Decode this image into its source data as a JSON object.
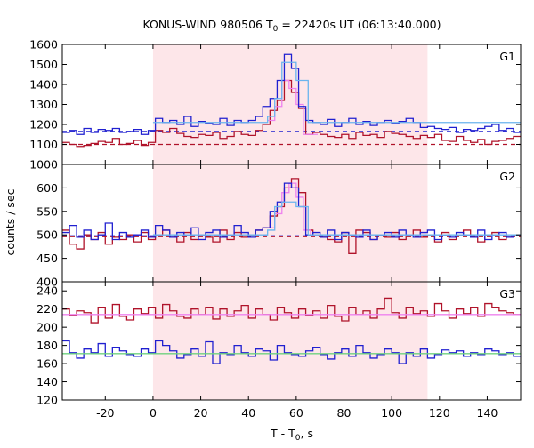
{
  "title_main": "KONUS-WIND 980506 T",
  "title_sub": "0",
  "title_rest": " = 22420s UT (06:13:40.000)",
  "ylabel": "counts / sec",
  "xlabel_main": "T - T",
  "xlabel_sub": "0",
  "xlabel_rest": ", s",
  "colors": {
    "dark_red": "#b0132a",
    "pink": "#ee82ee",
    "blue": "#2020d0",
    "light_blue": "#6ab4ee",
    "background_band": "#fde6e9",
    "green_fit": "#6fd27f"
  },
  "chart_data": [
    {
      "type": "line",
      "panel_label": "G1",
      "xlim": [
        -38,
        154
      ],
      "ylim": [
        1000,
        1600
      ],
      "grid": false,
      "x_ticks": [
        -20,
        0,
        20,
        40,
        60,
        80,
        100,
        120,
        140
      ],
      "y_ticks": [
        1000,
        1100,
        1200,
        1300,
        1400,
        1500,
        1600
      ],
      "highlight_interval": [
        0,
        115
      ],
      "series": [
        {
          "color": "dark_red",
          "step": true,
          "x": [
            -38,
            -35,
            -32,
            -29,
            -26,
            -23,
            -20,
            -17,
            -14,
            -11,
            -8,
            -5,
            -2,
            1,
            4,
            7,
            10,
            13,
            16,
            19,
            22,
            25,
            28,
            31,
            34,
            37,
            40,
            43,
            46,
            49,
            52,
            55,
            58,
            61,
            64,
            67,
            70,
            73,
            76,
            79,
            82,
            85,
            88,
            91,
            94,
            97,
            100,
            103,
            106,
            109,
            112,
            115,
            118,
            121,
            124,
            127,
            130,
            133,
            136,
            139,
            142,
            145,
            148,
            151
          ],
          "y": [
            1110,
            1100,
            1090,
            1095,
            1105,
            1115,
            1110,
            1130,
            1100,
            1105,
            1120,
            1095,
            1110,
            1170,
            1160,
            1180,
            1155,
            1140,
            1135,
            1150,
            1145,
            1160,
            1130,
            1140,
            1165,
            1150,
            1145,
            1170,
            1200,
            1270,
            1320,
            1420,
            1360,
            1280,
            1150,
            1160,
            1150,
            1140,
            1135,
            1150,
            1130,
            1160,
            1145,
            1150,
            1135,
            1165,
            1155,
            1150,
            1140,
            1130,
            1145,
            1135,
            1150,
            1120,
            1115,
            1140,
            1120,
            1110,
            1125,
            1100,
            1115,
            1120,
            1130,
            1140
          ]
        },
        {
          "color": "pink",
          "step": true,
          "x": [
            48,
            51,
            54,
            57,
            60,
            63,
            66
          ],
          "y": [
            1220,
            1290,
            1420,
            1380,
            1300,
            1150,
            1150
          ]
        },
        {
          "color": "blue",
          "step": true,
          "x": [
            -38,
            -35,
            -32,
            -29,
            -26,
            -23,
            -20,
            -17,
            -14,
            -11,
            -8,
            -5,
            -2,
            1,
            4,
            7,
            10,
            13,
            16,
            19,
            22,
            25,
            28,
            31,
            34,
            37,
            40,
            43,
            46,
            49,
            52,
            55,
            58,
            61,
            64,
            67,
            70,
            73,
            76,
            79,
            82,
            85,
            88,
            91,
            94,
            97,
            100,
            103,
            106,
            109,
            112,
            115,
            118,
            121,
            124,
            127,
            130,
            133,
            136,
            139,
            142,
            145,
            148,
            151
          ],
          "y": [
            1160,
            1170,
            1150,
            1180,
            1160,
            1175,
            1170,
            1180,
            1160,
            1165,
            1175,
            1150,
            1170,
            1230,
            1210,
            1220,
            1200,
            1240,
            1190,
            1215,
            1205,
            1200,
            1230,
            1195,
            1220,
            1210,
            1220,
            1240,
            1290,
            1330,
            1420,
            1550,
            1480,
            1290,
            1220,
            1210,
            1200,
            1225,
            1190,
            1210,
            1230,
            1200,
            1215,
            1195,
            1210,
            1220,
            1205,
            1215,
            1230,
            1210,
            1185,
            1190,
            1180,
            1175,
            1185,
            1160,
            1175,
            1170,
            1180,
            1190,
            1200,
            1170,
            1180,
            1160
          ]
        },
        {
          "color": "light_blue",
          "step": true,
          "x": [
            0,
            48,
            51,
            54,
            60,
            65,
            115
          ],
          "y": [
            1210,
            1240,
            1330,
            1510,
            1420,
            1210,
            1210
          ]
        }
      ],
      "reference_lines": [
        {
          "color": "blue",
          "y": 1165,
          "style": "dashed"
        },
        {
          "color": "dark_red",
          "y": 1100,
          "style": "dashed"
        }
      ]
    },
    {
      "type": "line",
      "panel_label": "G2",
      "xlim": [
        -38,
        154
      ],
      "ylim": [
        400,
        650
      ],
      "grid": false,
      "x_ticks": [
        -20,
        0,
        20,
        40,
        60,
        80,
        100,
        120,
        140
      ],
      "y_ticks": [
        400,
        450,
        500,
        550,
        600
      ],
      "highlight_interval": [
        0,
        115
      ],
      "series": [
        {
          "color": "dark_red",
          "step": true,
          "x": [
            -38,
            -35,
            -32,
            -29,
            -26,
            -23,
            -20,
            -17,
            -14,
            -11,
            -8,
            -5,
            -2,
            1,
            4,
            7,
            10,
            13,
            16,
            19,
            22,
            25,
            28,
            31,
            34,
            37,
            40,
            43,
            46,
            49,
            52,
            55,
            58,
            61,
            64,
            67,
            70,
            73,
            76,
            79,
            82,
            85,
            88,
            91,
            94,
            97,
            100,
            103,
            106,
            109,
            112,
            115,
            118,
            121,
            124,
            127,
            130,
            133,
            136,
            139,
            142,
            145,
            148,
            151
          ],
          "y": [
            510,
            480,
            470,
            500,
            490,
            505,
            480,
            495,
            490,
            500,
            485,
            505,
            490,
            500,
            510,
            495,
            485,
            505,
            490,
            500,
            495,
            485,
            510,
            490,
            505,
            495,
            500,
            510,
            515,
            540,
            560,
            600,
            620,
            590,
            510,
            500,
            495,
            490,
            485,
            505,
            460,
            510,
            505,
            490,
            500,
            495,
            505,
            490,
            500,
            510,
            495,
            500,
            485,
            505,
            490,
            500,
            510,
            495,
            485,
            500,
            505,
            490,
            495,
            500
          ]
        },
        {
          "color": "pink",
          "step": true,
          "x": [
            48,
            51,
            54,
            57,
            60,
            63,
            66
          ],
          "y": [
            515,
            545,
            590,
            610,
            580,
            510,
            500
          ]
        },
        {
          "color": "blue",
          "step": true,
          "x": [
            -38,
            -35,
            -32,
            -29,
            -26,
            -23,
            -20,
            -17,
            -14,
            -11,
            -8,
            -5,
            -2,
            1,
            4,
            7,
            10,
            13,
            16,
            19,
            22,
            25,
            28,
            31,
            34,
            37,
            40,
            43,
            46,
            49,
            52,
            55,
            58,
            61,
            64,
            67,
            70,
            73,
            76,
            79,
            82,
            85,
            88,
            91,
            94,
            97,
            100,
            103,
            106,
            109,
            112,
            115,
            118,
            121,
            124,
            127,
            130,
            133,
            136,
            139,
            142,
            145,
            148,
            151
          ],
          "y": [
            505,
            520,
            495,
            510,
            490,
            500,
            525,
            490,
            505,
            495,
            500,
            510,
            495,
            520,
            510,
            495,
            505,
            500,
            515,
            490,
            505,
            510,
            495,
            500,
            520,
            505,
            495,
            510,
            515,
            550,
            570,
            610,
            600,
            560,
            500,
            505,
            495,
            510,
            490,
            505,
            500,
            495,
            510,
            490,
            500,
            505,
            495,
            510,
            500,
            495,
            505,
            510,
            490,
            500,
            495,
            505,
            500,
            495,
            510,
            490,
            500,
            505,
            495,
            500
          ]
        },
        {
          "color": "light_blue",
          "step": true,
          "x": [
            0,
            48,
            51,
            54,
            60,
            65,
            115
          ],
          "y": [
            500,
            510,
            560,
            570,
            560,
            500,
            500
          ]
        }
      ],
      "reference_lines": [
        {
          "color": "blue",
          "y": 498,
          "style": "dashed"
        },
        {
          "color": "dark_red",
          "y": 496,
          "style": "dashed"
        }
      ]
    },
    {
      "type": "line",
      "panel_label": "G3",
      "xlim": [
        -38,
        154
      ],
      "ylim": [
        120,
        250
      ],
      "grid": false,
      "x_ticks": [
        -20,
        0,
        20,
        40,
        60,
        80,
        100,
        120,
        140
      ],
      "y_ticks": [
        120,
        140,
        160,
        180,
        200,
        220,
        240
      ],
      "highlight_interval": [
        0,
        115
      ],
      "series": [
        {
          "color": "dark_red",
          "step": true,
          "x": [
            -38,
            -35,
            -32,
            -29,
            -26,
            -23,
            -20,
            -17,
            -14,
            -11,
            -8,
            -5,
            -2,
            1,
            4,
            7,
            10,
            13,
            16,
            19,
            22,
            25,
            28,
            31,
            34,
            37,
            40,
            43,
            46,
            49,
            52,
            55,
            58,
            61,
            64,
            67,
            70,
            73,
            76,
            79,
            82,
            85,
            88,
            91,
            94,
            97,
            100,
            103,
            106,
            109,
            112,
            115,
            118,
            121,
            124,
            127,
            130,
            133,
            136,
            139,
            142,
            145,
            148,
            151
          ],
          "y": [
            220,
            213,
            218,
            216,
            205,
            222,
            210,
            225,
            212,
            208,
            220,
            215,
            222,
            210,
            225,
            218,
            212,
            210,
            220,
            214,
            222,
            209,
            220,
            212,
            218,
            224,
            210,
            220,
            214,
            208,
            222,
            216,
            210,
            220,
            213,
            218,
            210,
            224,
            212,
            207,
            222,
            214,
            218,
            210,
            220,
            232,
            216,
            210,
            222,
            215,
            218,
            212,
            226,
            218,
            210,
            220,
            215,
            222,
            212,
            226,
            222,
            218,
            216,
            214
          ]
        },
        {
          "color": "pink",
          "step": false,
          "x": [
            -38,
            154
          ],
          "y": [
            214,
            214
          ]
        },
        {
          "color": "blue",
          "step": true,
          "x": [
            -38,
            -35,
            -32,
            -29,
            -26,
            -23,
            -20,
            -17,
            -14,
            -11,
            -8,
            -5,
            -2,
            1,
            4,
            7,
            10,
            13,
            16,
            19,
            22,
            25,
            28,
            31,
            34,
            37,
            40,
            43,
            46,
            49,
            52,
            55,
            58,
            61,
            64,
            67,
            70,
            73,
            76,
            79,
            82,
            85,
            88,
            91,
            94,
            97,
            100,
            103,
            106,
            109,
            112,
            115,
            118,
            121,
            124,
            127,
            130,
            133,
            136,
            139,
            142,
            145,
            148,
            151
          ],
          "y": [
            185,
            172,
            166,
            176,
            172,
            182,
            168,
            178,
            174,
            170,
            168,
            176,
            172,
            185,
            180,
            174,
            166,
            170,
            176,
            168,
            184,
            160,
            172,
            170,
            180,
            172,
            168,
            176,
            174,
            164,
            180,
            172,
            170,
            168,
            174,
            178,
            170,
            165,
            172,
            176,
            168,
            180,
            172,
            166,
            170,
            176,
            172,
            160,
            172,
            168,
            176,
            166,
            170,
            175,
            172,
            174,
            168,
            172,
            170,
            176,
            174,
            170,
            172,
            168
          ]
        },
        {
          "color": "green_fit",
          "step": false,
          "x": [
            -38,
            154
          ],
          "y": [
            171,
            171
          ]
        }
      ],
      "reference_lines": []
    }
  ]
}
